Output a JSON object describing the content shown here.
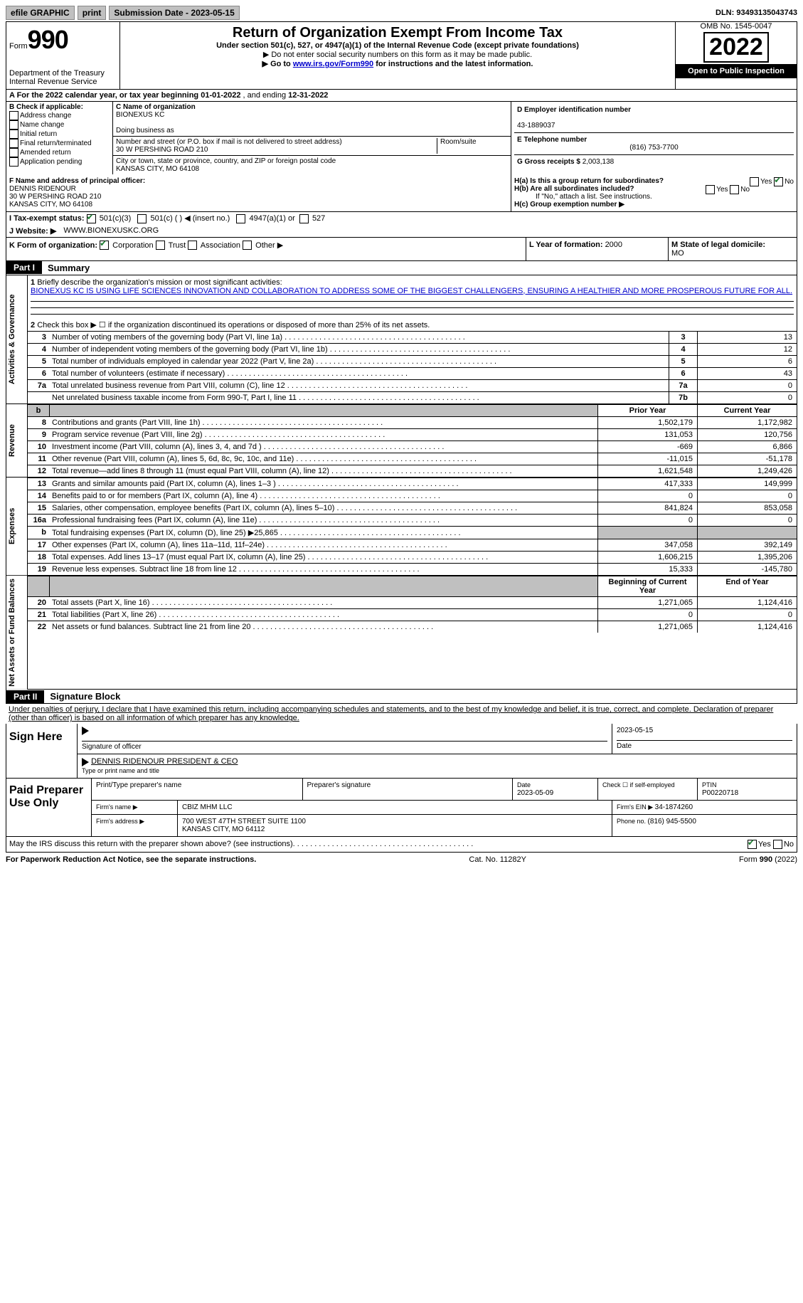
{
  "topbar": {
    "efile": "efile GRAPHIC",
    "print": "print",
    "subdate_label": "Submission Date - ",
    "subdate": "2023-05-15",
    "dln_label": "DLN: ",
    "dln": "93493135043743"
  },
  "header": {
    "form_label": "Form",
    "form_num": "990",
    "dept1": "Department of the Treasury",
    "dept2": "Internal Revenue Service",
    "title": "Return of Organization Exempt From Income Tax",
    "subtitle": "Under section 501(c), 527, or 4947(a)(1) of the Internal Revenue Code (except private foundations)",
    "note1": "▶ Do not enter social security numbers on this form as it may be made public.",
    "note2_pre": "▶ Go to ",
    "note2_link": "www.irs.gov/Form990",
    "note2_post": " for instructions and the latest information.",
    "omb": "OMB No. 1545-0047",
    "year": "2022",
    "open": "Open to Public Inspection"
  },
  "rowA": {
    "label_pre": "A For the 2022 calendar year, or tax year beginning ",
    "begin": "01-01-2022",
    "mid": "   , and ending ",
    "end": "12-31-2022"
  },
  "colB": {
    "label": "B Check if applicable:",
    "opts": [
      "Address change",
      "Name change",
      "Initial return",
      "Final return/terminated",
      "Amended return",
      "Application pending"
    ]
  },
  "colC": {
    "name_label": "C Name of organization",
    "name": "BIONEXUS KC",
    "dba_label": "Doing business as",
    "addr_label": "Number and street (or P.O. box if mail is not delivered to street address)",
    "addr": "30 W PERSHING ROAD 210",
    "room_label": "Room/suite",
    "city_label": "City or town, state or province, country, and ZIP or foreign postal code",
    "city": "KANSAS CITY, MO  64108"
  },
  "colD": {
    "ein_label": "D Employer identification number",
    "ein": "43-1889037",
    "tel_label": "E Telephone number",
    "tel": "(816) 753-7700",
    "gross_label": "G Gross receipts $ ",
    "gross": "2,003,138"
  },
  "sectionF": {
    "label": "F Name and address of principal officer:",
    "name": "DENNIS RIDENOUR",
    "addr1": "30 W PERSHING ROAD 210",
    "addr2": "KANSAS CITY, MO  64108"
  },
  "sectionH": {
    "ha_label": "H(a)  Is this a group return for subordinates?",
    "hb_label": "H(b)  Are all subordinates included?",
    "hb_note": "If \"No,\" attach a list. See instructions.",
    "hc_label": "H(c)  Group exemption number ▶",
    "yes": "Yes",
    "no": "No"
  },
  "rowI_label": "I  Tax-exempt status:",
  "rowI_opts": [
    "501(c)(3)",
    "501(c) (  ) ◀ (insert no.)",
    "4947(a)(1) or",
    "527"
  ],
  "rowJ_label": "J  Website: ▶",
  "rowJ_val": "WWW.BIONEXUSKC.ORG",
  "rowK": {
    "k_label": "K Form of organization:",
    "k_opts": [
      "Corporation",
      "Trust",
      "Association",
      "Other ▶"
    ],
    "l_label": "L Year of formation: ",
    "l_val": "2000",
    "m_label": "M State of legal domicile: ",
    "m_val": "MO"
  },
  "part1": {
    "tag": "Part I",
    "title": "Summary",
    "line1_label": "Briefly describe the organization's mission or most significant activities:",
    "line1_text": "BIONEXUS KC IS USING LIFE SCIENCES INNOVATION AND COLLABORATION TO ADDRESS SOME OF THE BIGGEST CHALLENGERS, ENSURING A HEALTHIER AND MORE PROSPEROUS FUTURE FOR ALL.",
    "line2": "Check this box ▶ ☐ if the organization discontinued its operations or disposed of more than 25% of its net assets.",
    "vtab1": "Activities & Governance",
    "vtab2": "Revenue",
    "vtab3": "Expenses",
    "vtab4": "Net Assets or Fund Balances",
    "cols": {
      "prior": "Prior Year",
      "current": "Current Year",
      "begin": "Beginning of Current Year",
      "end": "End of Year"
    },
    "lines_single": [
      {
        "n": "3",
        "label": "Number of voting members of the governing body (Part VI, line 1a)",
        "box": "3",
        "val": "13"
      },
      {
        "n": "4",
        "label": "Number of independent voting members of the governing body (Part VI, line 1b)",
        "box": "4",
        "val": "12"
      },
      {
        "n": "5",
        "label": "Total number of individuals employed in calendar year 2022 (Part V, line 2a)",
        "box": "5",
        "val": "6"
      },
      {
        "n": "6",
        "label": "Total number of volunteers (estimate if necessary)",
        "box": "6",
        "val": "43"
      },
      {
        "n": "7a",
        "label": "Total unrelated business revenue from Part VIII, column (C), line 12",
        "box": "7a",
        "val": "0"
      },
      {
        "n": "",
        "label": "Net unrelated business taxable income from Form 990-T, Part I, line 11",
        "box": "7b",
        "val": "0"
      }
    ],
    "rev": [
      {
        "n": "8",
        "label": "Contributions and grants (Part VIII, line 1h)",
        "p": "1,502,179",
        "c": "1,172,982"
      },
      {
        "n": "9",
        "label": "Program service revenue (Part VIII, line 2g)",
        "p": "131,053",
        "c": "120,756"
      },
      {
        "n": "10",
        "label": "Investment income (Part VIII, column (A), lines 3, 4, and 7d )",
        "p": "-669",
        "c": "6,866"
      },
      {
        "n": "11",
        "label": "Other revenue (Part VIII, column (A), lines 5, 6d, 8c, 9c, 10c, and 11e)",
        "p": "-11,015",
        "c": "-51,178"
      },
      {
        "n": "12",
        "label": "Total revenue—add lines 8 through 11 (must equal Part VIII, column (A), line 12)",
        "p": "1,621,548",
        "c": "1,249,426"
      }
    ],
    "exp": [
      {
        "n": "13",
        "label": "Grants and similar amounts paid (Part IX, column (A), lines 1–3 )",
        "p": "417,333",
        "c": "149,999"
      },
      {
        "n": "14",
        "label": "Benefits paid to or for members (Part IX, column (A), line 4)",
        "p": "0",
        "c": "0"
      },
      {
        "n": "15",
        "label": "Salaries, other compensation, employee benefits (Part IX, column (A), lines 5–10)",
        "p": "841,824",
        "c": "853,058"
      },
      {
        "n": "16a",
        "label": "Professional fundraising fees (Part IX, column (A), line 11e)",
        "p": "0",
        "c": "0"
      },
      {
        "n": "b",
        "label": "Total fundraising expenses (Part IX, column (D), line 25) ▶25,865",
        "p": "",
        "c": "",
        "shaded": true
      },
      {
        "n": "17",
        "label": "Other expenses (Part IX, column (A), lines 11a–11d, 11f–24e)",
        "p": "347,058",
        "c": "392,149"
      },
      {
        "n": "18",
        "label": "Total expenses. Add lines 13–17 (must equal Part IX, column (A), line 25)",
        "p": "1,606,215",
        "c": "1,395,206"
      },
      {
        "n": "19",
        "label": "Revenue less expenses. Subtract line 18 from line 12",
        "p": "15,333",
        "c": "-145,780"
      }
    ],
    "na": [
      {
        "n": "20",
        "label": "Total assets (Part X, line 16)",
        "p": "1,271,065",
        "c": "1,124,416"
      },
      {
        "n": "21",
        "label": "Total liabilities (Part X, line 26)",
        "p": "0",
        "c": "0"
      },
      {
        "n": "22",
        "label": "Net assets or fund balances. Subtract line 21 from line 20",
        "p": "1,271,065",
        "c": "1,124,416"
      }
    ]
  },
  "part2": {
    "tag": "Part II",
    "title": "Signature Block",
    "decl": "Under penalties of perjury, I declare that I have examined this return, including accompanying schedules and statements, and to the best of my knowledge and belief, it is true, correct, and complete. Declaration of preparer (other than officer) is based on all information of which preparer has any knowledge."
  },
  "sign": {
    "left": "Sign Here",
    "sig_label": "Signature of officer",
    "date_label": "Date",
    "date": "2023-05-15",
    "name": "DENNIS RIDENOUR  PRESIDENT & CEO",
    "name_label": "Type or print name and title"
  },
  "prep": {
    "left": "Paid Preparer Use Only",
    "r1": {
      "c1": "Print/Type preparer's name",
      "c2": "Preparer's signature",
      "c3l": "Date",
      "c3": "2023-05-09",
      "c4": "Check ☐ if self-employed",
      "c5l": "PTIN",
      "c5": "P00220718"
    },
    "r2": {
      "c1": "Firm's name    ▶",
      "c2": "CBIZ MHM LLC",
      "c3l": "Firm's EIN ▶ ",
      "c3": "34-1874260"
    },
    "r3": {
      "c1": "Firm's address ▶",
      "c2": "700 WEST 47TH STREET SUITE 1100",
      "c2b": "KANSAS CITY, MO  64112",
      "c3l": "Phone no. ",
      "c3": "(816) 945-5500"
    }
  },
  "may": {
    "text": "May the IRS discuss this return with the preparer shown above? (see instructions)",
    "yes": "Yes",
    "no": "No"
  },
  "footer": {
    "left": "For Paperwork Reduction Act Notice, see the separate instructions.",
    "mid": "Cat. No. 11282Y",
    "right": "Form 990 (2022)"
  }
}
